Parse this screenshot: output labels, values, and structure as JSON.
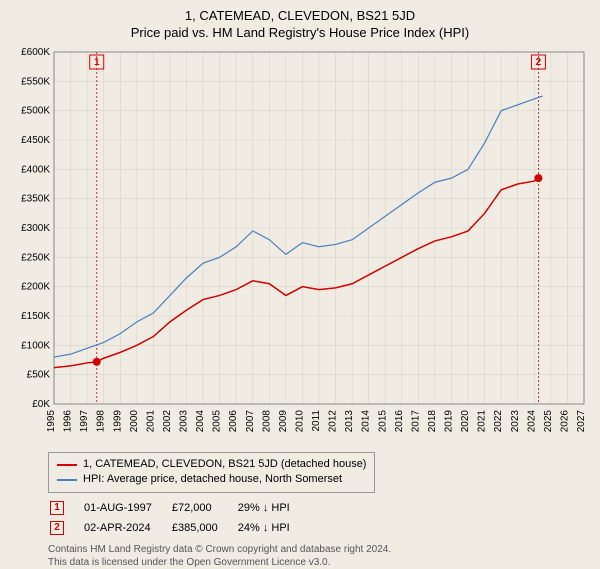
{
  "title": "1, CATEMEAD, CLEVEDON, BS21 5JD",
  "subtitle": "Price paid vs. HM Land Registry's House Price Index (HPI)",
  "chart": {
    "type": "line",
    "background_color": "#f0ece3",
    "grid_color": "#d8d3c8",
    "border_color": "#888888",
    "x": {
      "min": 1995,
      "max": 2027,
      "ticks": [
        1995,
        1996,
        1997,
        1998,
        1999,
        2000,
        2001,
        2002,
        2003,
        2004,
        2005,
        2006,
        2007,
        2008,
        2009,
        2010,
        2011,
        2012,
        2013,
        2014,
        2015,
        2016,
        2017,
        2018,
        2019,
        2020,
        2021,
        2022,
        2023,
        2024,
        2025,
        2026,
        2027
      ]
    },
    "y": {
      "min": 0,
      "max": 600,
      "ticks": [
        0,
        50,
        100,
        150,
        200,
        250,
        300,
        350,
        400,
        450,
        500,
        550,
        600
      ],
      "tick_prefix": "£",
      "tick_suffix": "K"
    },
    "series": [
      {
        "name": "1, CATEMEAD, CLEVEDON, BS21 5JD (detached house)",
        "color": "#d40000",
        "width": 1.5,
        "data": [
          [
            1995,
            62
          ],
          [
            1996,
            65
          ],
          [
            1997,
            70
          ],
          [
            1997.58,
            72
          ],
          [
            1998,
            78
          ],
          [
            1999,
            88
          ],
          [
            2000,
            100
          ],
          [
            2001,
            115
          ],
          [
            2002,
            140
          ],
          [
            2003,
            160
          ],
          [
            2004,
            178
          ],
          [
            2005,
            185
          ],
          [
            2006,
            195
          ],
          [
            2007,
            210
          ],
          [
            2008,
            205
          ],
          [
            2009,
            185
          ],
          [
            2010,
            200
          ],
          [
            2011,
            195
          ],
          [
            2012,
            198
          ],
          [
            2013,
            205
          ],
          [
            2014,
            220
          ],
          [
            2015,
            235
          ],
          [
            2016,
            250
          ],
          [
            2017,
            265
          ],
          [
            2018,
            278
          ],
          [
            2019,
            285
          ],
          [
            2020,
            295
          ],
          [
            2021,
            325
          ],
          [
            2022,
            365
          ],
          [
            2023,
            375
          ],
          [
            2024,
            380
          ],
          [
            2024.25,
            385
          ]
        ]
      },
      {
        "name": "HPI: Average price, detached house, North Somerset",
        "color": "#4a7fc0",
        "width": 1.2,
        "data": [
          [
            1995,
            80
          ],
          [
            1996,
            85
          ],
          [
            1997,
            95
          ],
          [
            1998,
            105
          ],
          [
            1999,
            120
          ],
          [
            2000,
            140
          ],
          [
            2001,
            155
          ],
          [
            2002,
            185
          ],
          [
            2003,
            215
          ],
          [
            2004,
            240
          ],
          [
            2005,
            250
          ],
          [
            2006,
            268
          ],
          [
            2007,
            295
          ],
          [
            2008,
            280
          ],
          [
            2009,
            255
          ],
          [
            2010,
            275
          ],
          [
            2011,
            268
          ],
          [
            2012,
            272
          ],
          [
            2013,
            280
          ],
          [
            2014,
            300
          ],
          [
            2015,
            320
          ],
          [
            2016,
            340
          ],
          [
            2017,
            360
          ],
          [
            2018,
            378
          ],
          [
            2019,
            385
          ],
          [
            2020,
            400
          ],
          [
            2021,
            445
          ],
          [
            2022,
            500
          ],
          [
            2023,
            510
          ],
          [
            2024,
            520
          ],
          [
            2024.5,
            525
          ]
        ]
      }
    ],
    "markers": [
      {
        "label": "1",
        "date": "01-AUG-1997",
        "x": 1997.58,
        "y": 72,
        "price": "£72,000",
        "delta": "29% ↓ HPI",
        "color": "#d40000"
      },
      {
        "label": "2",
        "date": "02-APR-2024",
        "x": 2024.25,
        "y": 385,
        "price": "£385,000",
        "delta": "24% ↓ HPI",
        "color": "#d40000"
      }
    ],
    "label_fontsize": 10,
    "tick_fontsize": 10
  },
  "footer_line1": "Contains HM Land Registry data © Crown copyright and database right 2024.",
  "footer_line2": "This data is licensed under the Open Government Licence v3.0."
}
